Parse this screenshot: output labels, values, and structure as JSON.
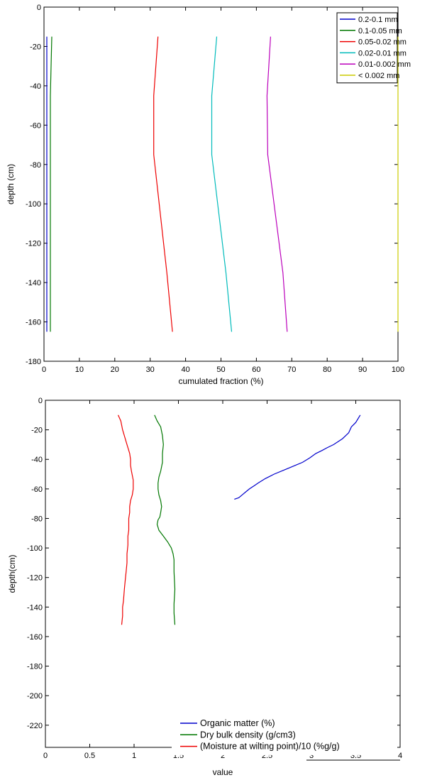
{
  "chart_data": [
    {
      "type": "line",
      "xlabel": "cumulated fraction (%)",
      "ylabel": "depth (cm)",
      "xlim": [
        0,
        100
      ],
      "ylim": [
        -180,
        0
      ],
      "xticks": [
        0,
        10,
        20,
        30,
        40,
        50,
        60,
        70,
        80,
        90,
        100
      ],
      "yticks": [
        0,
        -20,
        -40,
        -60,
        -80,
        -100,
        -120,
        -140,
        -160,
        -180
      ],
      "legend_position": "top-right",
      "series": [
        {
          "name": "0.2-0.1 mm",
          "color": "#0000cc",
          "x": [
            0.8,
            0.8,
            0.8,
            0.8,
            0.8
          ],
          "y": [
            -15,
            -45,
            -75,
            -135,
            -165
          ]
        },
        {
          "name": "0.1-0.05 mm",
          "color": "#007700",
          "x": [
            2.2,
            1.8,
            1.8,
            1.8,
            1.8
          ],
          "y": [
            -15,
            -45,
            -75,
            -135,
            -165
          ]
        },
        {
          "name": "0.05-0.02 mm",
          "color": "#ee0000",
          "x": [
            32.2,
            31.0,
            31.0,
            34.7,
            36.3
          ],
          "y": [
            -15,
            -45,
            -75,
            -135,
            -165
          ]
        },
        {
          "name": "0.02-0.01 mm",
          "color": "#00bbbb",
          "x": [
            48.8,
            47.4,
            47.4,
            51.4,
            53.0
          ],
          "y": [
            -15,
            -45,
            -75,
            -135,
            -165
          ]
        },
        {
          "name": "0.01-0.002 mm",
          "color": "#bb00bb",
          "x": [
            64.0,
            63.0,
            63.2,
            67.5,
            68.7
          ],
          "y": [
            -15,
            -45,
            -75,
            -135,
            -165
          ]
        },
        {
          "name": "< 0.002 mm",
          "color": "#cccc00",
          "x": [
            100,
            100,
            100,
            100,
            100
          ],
          "y": [
            -15,
            -45,
            -75,
            -135,
            -165
          ]
        }
      ]
    },
    {
      "type": "line",
      "xlabel": "value",
      "ylabel": "depth(cm)",
      "xlim": [
        0,
        4
      ],
      "ylim": [
        -235,
        0
      ],
      "xticks": [
        0,
        0.5,
        1,
        1.5,
        2,
        2.5,
        3,
        3.5,
        4
      ],
      "yticks": [
        0,
        -20,
        -40,
        -60,
        -80,
        -100,
        -120,
        -140,
        -160,
        -180,
        -200,
        -220
      ],
      "legend_position": "bottom-right",
      "series": [
        {
          "name": "Organic matter (%)",
          "color": "#0000cc",
          "x": [
            3.55,
            3.5,
            3.45,
            3.42,
            3.35,
            3.25,
            3.18,
            3.12,
            3.05,
            2.98,
            2.9,
            2.82,
            2.7,
            2.58,
            2.48,
            2.4,
            2.35,
            2.3,
            2.26,
            2.22,
            2.18,
            2.13
          ],
          "y": [
            -10,
            -15,
            -18,
            -22,
            -26,
            -30,
            -32,
            -34,
            -36,
            -39,
            -42,
            -44,
            -47,
            -50,
            -53,
            -56,
            -58,
            -60,
            -62,
            -64,
            -66,
            -67
          ]
        },
        {
          "name": "Dry bulk density (g/cm3)",
          "color": "#007700",
          "x": [
            1.23,
            1.26,
            1.3,
            1.32,
            1.33,
            1.32,
            1.32,
            1.3,
            1.28,
            1.27,
            1.27,
            1.28,
            1.3,
            1.31,
            1.3,
            1.29,
            1.27,
            1.26,
            1.28,
            1.33,
            1.38,
            1.42,
            1.44,
            1.45,
            1.45,
            1.46,
            1.45,
            1.45,
            1.46
          ],
          "y": [
            -10,
            -14,
            -18,
            -24,
            -30,
            -36,
            -42,
            -48,
            -52,
            -56,
            -60,
            -64,
            -68,
            -72,
            -76,
            -79,
            -81,
            -84,
            -88,
            -92,
            -96,
            -100,
            -104,
            -108,
            -116,
            -128,
            -138,
            -144,
            -152
          ]
        },
        {
          "name": "(Moisture at wilting point)/10 (%g/g)",
          "color": "#ee0000",
          "x": [
            0.82,
            0.85,
            0.87,
            0.89,
            0.92,
            0.95,
            0.96,
            0.96,
            0.97,
            0.99,
            0.99,
            0.98,
            0.96,
            0.95,
            0.95,
            0.94,
            0.94,
            0.94,
            0.93,
            0.93,
            0.92,
            0.92,
            0.91,
            0.9,
            0.89,
            0.88,
            0.87,
            0.87,
            0.86
          ],
          "y": [
            -10,
            -14,
            -20,
            -24,
            -30,
            -36,
            -40,
            -44,
            -48,
            -54,
            -60,
            -64,
            -68,
            -72,
            -76,
            -80,
            -84,
            -88,
            -92,
            -98,
            -104,
            -110,
            -116,
            -122,
            -128,
            -136,
            -140,
            -146,
            -152
          ]
        }
      ]
    }
  ]
}
